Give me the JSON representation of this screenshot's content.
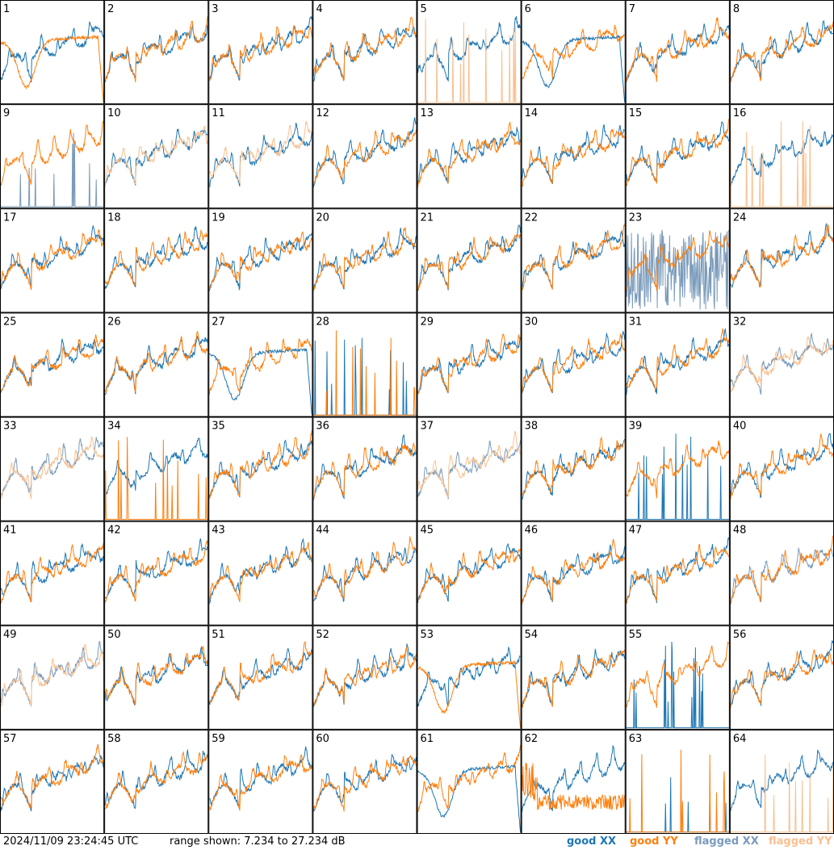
{
  "chart_data": {
    "type": "line",
    "grid": {
      "rows": 8,
      "cols": 8
    },
    "range_db": [
      7.234,
      27.234
    ],
    "panel_labels": [
      "1",
      "2",
      "3",
      "4",
      "5",
      "6",
      "7",
      "8",
      "9",
      "10",
      "11",
      "12",
      "13",
      "14",
      "15",
      "16",
      "17",
      "18",
      "19",
      "20",
      "21",
      "22",
      "23",
      "24",
      "25",
      "26",
      "27",
      "28",
      "29",
      "30",
      "31",
      "32",
      "33",
      "34",
      "35",
      "36",
      "37",
      "38",
      "39",
      "40",
      "41",
      "42",
      "43",
      "44",
      "45",
      "46",
      "47",
      "48",
      "49",
      "50",
      "51",
      "52",
      "53",
      "54",
      "55",
      "56",
      "57",
      "58",
      "59",
      "60",
      "61",
      "62",
      "63",
      "64"
    ],
    "series_legend": [
      {
        "name": "good XX",
        "color": "#1f77b4"
      },
      {
        "name": "good YY",
        "color": "#ff7f0e"
      },
      {
        "name": "flagged XX",
        "color": "#7a9bbb"
      },
      {
        "name": "flagged YY",
        "color": "#f9c08f"
      }
    ],
    "panel_styles": {
      "1": {
        "xx": "good",
        "yy": "good",
        "yy_shape": "dip"
      },
      "5": {
        "xx": "good",
        "yy": "flagged",
        "yy_shape": "spikes"
      },
      "6": {
        "xx": "good",
        "yy": "good",
        "xx_shape": "dip"
      },
      "9": {
        "xx": "flagged",
        "yy": "good",
        "xx_shape": "spikes"
      },
      "10": {
        "xx": "good",
        "yy": "flagged"
      },
      "11": {
        "xx": "good",
        "yy": "flagged"
      },
      "16": {
        "xx": "good",
        "yy": "flagged",
        "yy_shape": "spikes"
      },
      "23": {
        "xx": "flagged",
        "yy": "good",
        "xx_shape": "noisy"
      },
      "27": {
        "xx": "good",
        "yy": "good",
        "xx_shape": "dip"
      },
      "28": {
        "xx": "good",
        "yy": "good",
        "xx_shape": "spikes",
        "yy_shape": "spikes"
      },
      "32": {
        "xx": "flagged",
        "yy": "flagged"
      },
      "33": {
        "xx": "flagged",
        "yy": "flagged"
      },
      "34": {
        "xx": "good",
        "yy": "good",
        "yy_shape": "spikes"
      },
      "37": {
        "xx": "flagged",
        "yy": "flagged"
      },
      "39": {
        "xx": "good",
        "yy": "good",
        "xx_shape": "spikes"
      },
      "48": {
        "xx": "flagged",
        "yy": "good"
      },
      "49": {
        "xx": "flagged",
        "yy": "flagged"
      },
      "53": {
        "xx": "good",
        "yy": "good",
        "yy_shape": "dip"
      },
      "55": {
        "xx": "good",
        "yy": "good",
        "xx_shape": "spikes"
      },
      "61": {
        "xx": "good",
        "yy": "good",
        "xx_shape": "dip"
      },
      "62": {
        "xx": "good",
        "yy": "good",
        "yy_shape": "low"
      },
      "63": {
        "xx": "good",
        "yy": "good",
        "xx_shape": "spikes",
        "yy_shape": "spikes"
      },
      "64": {
        "xx": "good",
        "yy": "flagged",
        "yy_shape": "spikes"
      }
    }
  },
  "footer": {
    "timestamp": "2024/11/09 23:24:45 UTC",
    "range_text": "range shown: 7.234 to 27.234 dB",
    "legend": [
      "good XX",
      "good YY",
      "flagged XX",
      "flagged YY"
    ]
  }
}
